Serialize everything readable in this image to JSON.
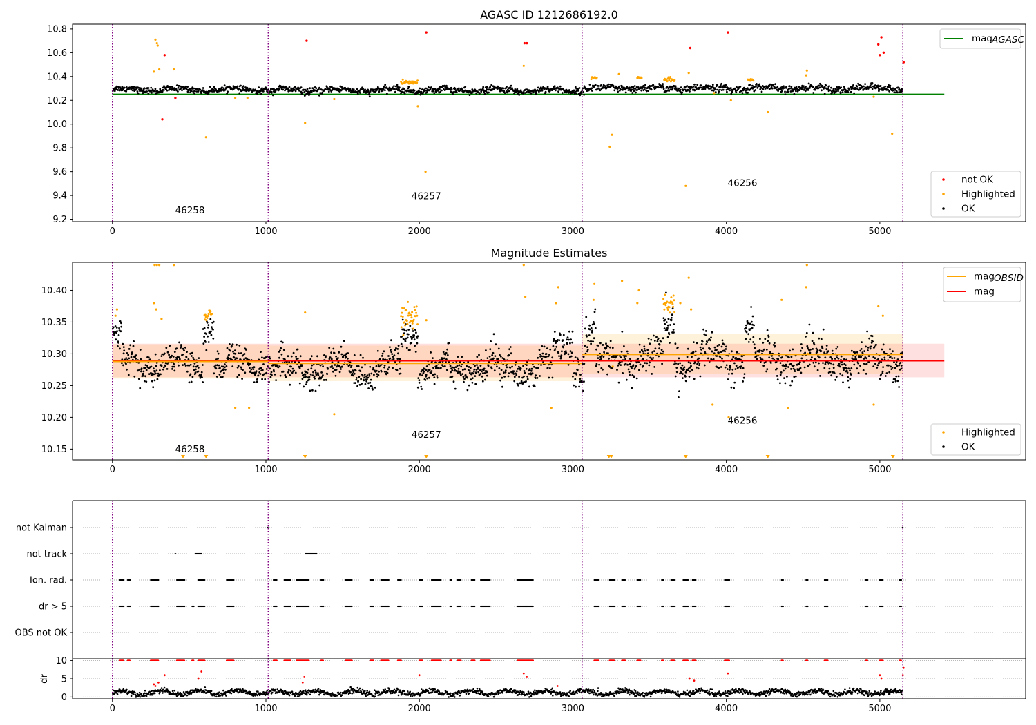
{
  "colors": {
    "ok": "#000000",
    "not_ok": "#ff0000",
    "highlighted": "#ffa500",
    "mag_agasc": "#008000",
    "mag_obsid": "#ffa500",
    "mag": "#ff0000",
    "obsid_boundary": "#800080",
    "grid": "#b0b0b0"
  },
  "chart_data": [
    {
      "type": "scatter",
      "title": "AGASC ID 1212686192.0",
      "xlim": [
        -260,
        5950
      ],
      "ylim": [
        9.18,
        10.84
      ],
      "xticks": [
        0,
        1000,
        2000,
        3000,
        4000,
        5000
      ],
      "yticks": [
        9.2,
        9.4,
        9.6,
        9.8,
        10.0,
        10.2,
        10.4,
        10.6,
        10.8
      ],
      "ytick_labels": [
        "9.2",
        "9.4",
        "9.6",
        "9.8",
        "10.0",
        "10.2",
        "10.4",
        "10.6",
        "10.8"
      ],
      "obsid_boundaries": [
        0,
        1015,
        3060,
        5150
      ],
      "obsid_labels": [
        {
          "text": "46258",
          "x": 505,
          "y": 9.25
        },
        {
          "text": "46257",
          "x": 2045,
          "y": 9.37
        },
        {
          "text": "46256",
          "x": 4105,
          "y": 9.48
        }
      ],
      "mag_agasc": {
        "value": 10.25,
        "x_range": [
          0,
          5420
        ]
      },
      "ok_segments": [
        {
          "x0": 0,
          "x1": 1015,
          "level": 10.29,
          "noise": 0.022
        },
        {
          "x0": 1015,
          "x1": 3060,
          "level": 10.285,
          "noise": 0.024
        },
        {
          "x0": 3060,
          "x1": 5150,
          "level": 10.3,
          "noise": 0.028
        }
      ],
      "highlighted_points": [
        [
          280,
          10.71
        ],
        [
          290,
          10.68
        ],
        [
          295,
          10.66
        ],
        [
          305,
          10.46
        ],
        [
          270,
          10.44
        ],
        [
          400,
          10.46
        ],
        [
          610,
          9.89
        ],
        [
          1255,
          10.01
        ],
        [
          2040,
          9.6
        ],
        [
          1990,
          10.15
        ],
        [
          2680,
          10.49
        ],
        [
          3240,
          9.81
        ],
        [
          3255,
          9.91
        ],
        [
          3300,
          10.42
        ],
        [
          3735,
          9.48
        ],
        [
          3755,
          10.43
        ],
        [
          4030,
          10.2
        ],
        [
          4270,
          10.1
        ],
        [
          4525,
          10.45
        ],
        [
          4520,
          10.41
        ],
        [
          4960,
          10.23
        ],
        [
          5080,
          9.92
        ],
        [
          3920,
          10.26
        ],
        [
          1445,
          10.21
        ],
        [
          800,
          10.22
        ],
        [
          880,
          10.22
        ]
      ],
      "highlighted_clusters": [
        {
          "x0": 1880,
          "x1": 1990,
          "level": 10.35,
          "spread": 0.018
        },
        {
          "x0": 3595,
          "x1": 3665,
          "level": 10.37,
          "spread": 0.02
        },
        {
          "x0": 3120,
          "x1": 3160,
          "level": 10.39,
          "spread": 0.01
        },
        {
          "x0": 3420,
          "x1": 3450,
          "level": 10.39,
          "spread": 0.01
        },
        {
          "x0": 4140,
          "x1": 4180,
          "level": 10.37,
          "spread": 0.01
        }
      ],
      "not_ok_points": [
        [
          340,
          10.58
        ],
        [
          325,
          10.04
        ],
        [
          410,
          10.22
        ],
        [
          1265,
          10.7
        ],
        [
          2045,
          10.77
        ],
        [
          2685,
          10.68
        ],
        [
          2700,
          10.68
        ],
        [
          3765,
          10.64
        ],
        [
          4010,
          10.77
        ],
        [
          4990,
          10.67
        ],
        [
          5010,
          10.73
        ],
        [
          5025,
          10.6
        ],
        [
          5000,
          10.58
        ],
        [
          5155,
          10.52
        ]
      ],
      "legend_top": [
        {
          "label": "mag",
          "sub": "AGASC",
          "color_key": "mag_agasc"
        }
      ],
      "legend_bottom": [
        {
          "label": "not OK",
          "color_key": "not_ok"
        },
        {
          "label": "Highlighted",
          "color_key": "highlighted"
        },
        {
          "label": "OK",
          "color_key": "ok"
        }
      ]
    },
    {
      "type": "scatter",
      "title": "Magnitude Estimates",
      "xlim": [
        -260,
        5950
      ],
      "ylim": [
        10.133,
        10.444
      ],
      "xticks": [
        0,
        1000,
        2000,
        3000,
        4000,
        5000
      ],
      "yticks": [
        10.15,
        10.2,
        10.25,
        10.3,
        10.35,
        10.4
      ],
      "ytick_labels": [
        "10.15",
        "10.20",
        "10.25",
        "10.30",
        "10.35",
        "10.40"
      ],
      "obsid_boundaries": [
        0,
        1015,
        3060,
        5150
      ],
      "obsid_labels": [
        {
          "text": "46258",
          "x": 505,
          "y": 10.145
        },
        {
          "text": "46257",
          "x": 2045,
          "y": 10.168
        },
        {
          "text": "46256",
          "x": 4105,
          "y": 10.19
        }
      ],
      "mag": {
        "value": 10.289,
        "band": [
          10.263,
          10.316
        ],
        "x_range": [
          0,
          5420
        ]
      },
      "mag_obsid": [
        {
          "x0": 0,
          "x1": 1015,
          "value": 10.288,
          "band": [
            10.261,
            10.315
          ]
        },
        {
          "x0": 1015,
          "x1": 3060,
          "value": 10.285,
          "band": [
            10.257,
            10.313
          ]
        },
        {
          "x0": 3060,
          "x1": 5150,
          "value": 10.299,
          "band": [
            10.268,
            10.331
          ]
        }
      ],
      "ok_segments": [
        {
          "x0": 0,
          "x1": 1015,
          "level": 10.282,
          "noise": 0.02
        },
        {
          "x0": 1015,
          "x1": 3060,
          "level": 10.278,
          "noise": 0.022
        },
        {
          "x0": 3060,
          "x1": 5150,
          "level": 10.292,
          "noise": 0.026
        }
      ],
      "ok_bumps": [
        {
          "x0": 0,
          "x1": 60,
          "level": 10.335
        },
        {
          "x0": 590,
          "x1": 660,
          "level": 10.335
        },
        {
          "x0": 1880,
          "x1": 1990,
          "level": 10.325
        },
        {
          "x0": 2870,
          "x1": 3000,
          "level": 10.31
        },
        {
          "x0": 3080,
          "x1": 3150,
          "level": 10.33
        },
        {
          "x0": 3590,
          "x1": 3660,
          "level": 10.345
        },
        {
          "x0": 4120,
          "x1": 4180,
          "level": 10.34
        }
      ],
      "highlighted_points": [
        [
          275,
          10.44
        ],
        [
          290,
          10.44
        ],
        [
          305,
          10.44
        ],
        [
          400,
          10.44
        ],
        [
          2680,
          10.44
        ],
        [
          4525,
          10.44
        ],
        [
          270,
          10.38
        ],
        [
          285,
          10.37
        ],
        [
          320,
          10.355
        ],
        [
          20,
          10.36
        ],
        [
          30,
          10.37
        ],
        [
          2905,
          10.405
        ],
        [
          2890,
          10.38
        ],
        [
          2690,
          10.39
        ],
        [
          3140,
          10.41
        ],
        [
          3135,
          10.385
        ],
        [
          3320,
          10.415
        ],
        [
          3430,
          10.4
        ],
        [
          3420,
          10.38
        ],
        [
          3755,
          10.42
        ],
        [
          3700,
          10.38
        ],
        [
          3770,
          10.37
        ],
        [
          4015,
          10.2
        ],
        [
          4360,
          10.385
        ],
        [
          4520,
          10.405
        ],
        [
          4990,
          10.375
        ],
        [
          5020,
          10.36
        ],
        [
          1255,
          10.365
        ],
        [
          2045,
          10.353
        ],
        [
          3910,
          10.22
        ],
        [
          4400,
          10.215
        ],
        [
          4960,
          10.22
        ],
        [
          1445,
          10.205
        ],
        [
          890,
          10.215
        ],
        [
          800,
          10.215
        ],
        [
          2860,
          10.215
        ],
        [
          4530,
          10.3
        ],
        [
          3260,
          10.28
        ]
      ],
      "highlighted_clusters": [
        {
          "x0": 600,
          "x1": 650,
          "level": 10.36,
          "spread": 0.006
        },
        {
          "x0": 1880,
          "x1": 1990,
          "level": 10.358,
          "spread": 0.01
        },
        {
          "x0": 3590,
          "x1": 3665,
          "level": 10.378,
          "spread": 0.008
        }
      ],
      "below_markers": [
        460,
        610,
        1255,
        2045,
        3235,
        3250,
        3735,
        4270,
        5085
      ],
      "legend_top": [
        {
          "label": "mag",
          "sub": "OBSID",
          "color_key": "mag_obsid"
        },
        {
          "label": "mag",
          "sub": "",
          "color_key": "mag"
        }
      ],
      "legend_bottom": [
        {
          "label": "Highlighted",
          "color_key": "highlighted"
        },
        {
          "label": "OK",
          "color_key": "ok"
        }
      ]
    },
    {
      "type": "scatter",
      "title": "",
      "xlim": [
        -260,
        5950
      ],
      "flag_rows": [
        "not Kalman",
        "not track",
        "Ion. rad.",
        "dr > 5",
        "OBS not OK"
      ],
      "obsid_boundaries": [
        0,
        1015,
        3060,
        5150
      ],
      "flag_events": {
        "not Kalman": [
          [
            1012,
            1016
          ],
          [
            5148,
            5152
          ]
        ],
        "not track": [
          [
            410,
            412
          ],
          [
            540,
            580
          ],
          [
            1260,
            1330
          ]
        ],
        "Ion. rad.": [
          [
            50,
            70
          ],
          [
            100,
            115
          ],
          [
            250,
            300
          ],
          [
            420,
            470
          ],
          [
            560,
            600
          ],
          [
            745,
            790
          ],
          [
            1050,
            1070
          ],
          [
            1120,
            1160
          ],
          [
            1200,
            1280
          ],
          [
            1360,
            1375
          ],
          [
            1520,
            1560
          ],
          [
            1680,
            1700
          ],
          [
            1750,
            1800
          ],
          [
            1860,
            1880
          ],
          [
            2000,
            2020
          ],
          [
            2080,
            2140
          ],
          [
            2200,
            2210
          ],
          [
            2250,
            2270
          ],
          [
            2340,
            2360
          ],
          [
            2400,
            2460
          ],
          [
            2640,
            2740
          ],
          [
            3140,
            3170
          ],
          [
            3240,
            3270
          ],
          [
            3320,
            3340
          ],
          [
            3420,
            3440
          ],
          [
            3580,
            3590
          ],
          [
            3640,
            3660
          ],
          [
            3720,
            3750
          ],
          [
            3780,
            3800
          ],
          [
            3990,
            4020
          ],
          [
            4360,
            4370
          ],
          [
            4520,
            4530
          ],
          [
            4640,
            4660
          ],
          [
            4910,
            4920
          ],
          [
            5000,
            5020
          ],
          [
            5130,
            5140
          ]
        ],
        "dr > 5": [
          [
            50,
            70
          ],
          [
            100,
            115
          ],
          [
            250,
            300
          ],
          [
            420,
            470
          ],
          [
            520,
            530
          ],
          [
            560,
            600
          ],
          [
            745,
            790
          ],
          [
            1050,
            1070
          ],
          [
            1120,
            1160
          ],
          [
            1200,
            1280
          ],
          [
            1360,
            1375
          ],
          [
            1520,
            1560
          ],
          [
            1680,
            1700
          ],
          [
            1750,
            1800
          ],
          [
            1860,
            1880
          ],
          [
            2000,
            2020
          ],
          [
            2080,
            2140
          ],
          [
            2200,
            2210
          ],
          [
            2250,
            2270
          ],
          [
            2340,
            2360
          ],
          [
            2400,
            2460
          ],
          [
            2640,
            2740
          ],
          [
            3140,
            3170
          ],
          [
            3240,
            3270
          ],
          [
            3320,
            3340
          ],
          [
            3420,
            3440
          ],
          [
            3580,
            3590
          ],
          [
            3640,
            3660
          ],
          [
            3720,
            3750
          ],
          [
            3780,
            3800
          ],
          [
            3990,
            4020
          ],
          [
            4360,
            4370
          ],
          [
            4520,
            4530
          ],
          [
            4640,
            4660
          ],
          [
            4910,
            4920
          ],
          [
            5000,
            5020
          ],
          [
            5130,
            5140
          ]
        ],
        "OBS not OK": []
      },
      "dr_panel": {
        "ylabel": "dr",
        "ylim": [
          -0.5,
          10.5
        ],
        "yticks": [
          0,
          5,
          10
        ],
        "ytick_labels": [
          "0",
          "5",
          "10"
        ],
        "cap": 10,
        "ok_level": 1.2,
        "spikes": [
          [
            270,
            3.5
          ],
          [
            280,
            3.0
          ],
          [
            300,
            4.0
          ],
          [
            340,
            6.0
          ],
          [
            560,
            5.0
          ],
          [
            580,
            7.0
          ],
          [
            1240,
            4.0
          ],
          [
            1250,
            5.5
          ],
          [
            2000,
            6.0
          ],
          [
            2680,
            6.5
          ],
          [
            2700,
            5.5
          ],
          [
            2900,
            3.0
          ],
          [
            3760,
            5.0
          ],
          [
            3790,
            4.5
          ],
          [
            4010,
            6.5
          ],
          [
            5000,
            6.0
          ],
          [
            5010,
            5.0
          ],
          [
            5155,
            8.0
          ],
          [
            5150,
            6.0
          ]
        ]
      }
    }
  ]
}
